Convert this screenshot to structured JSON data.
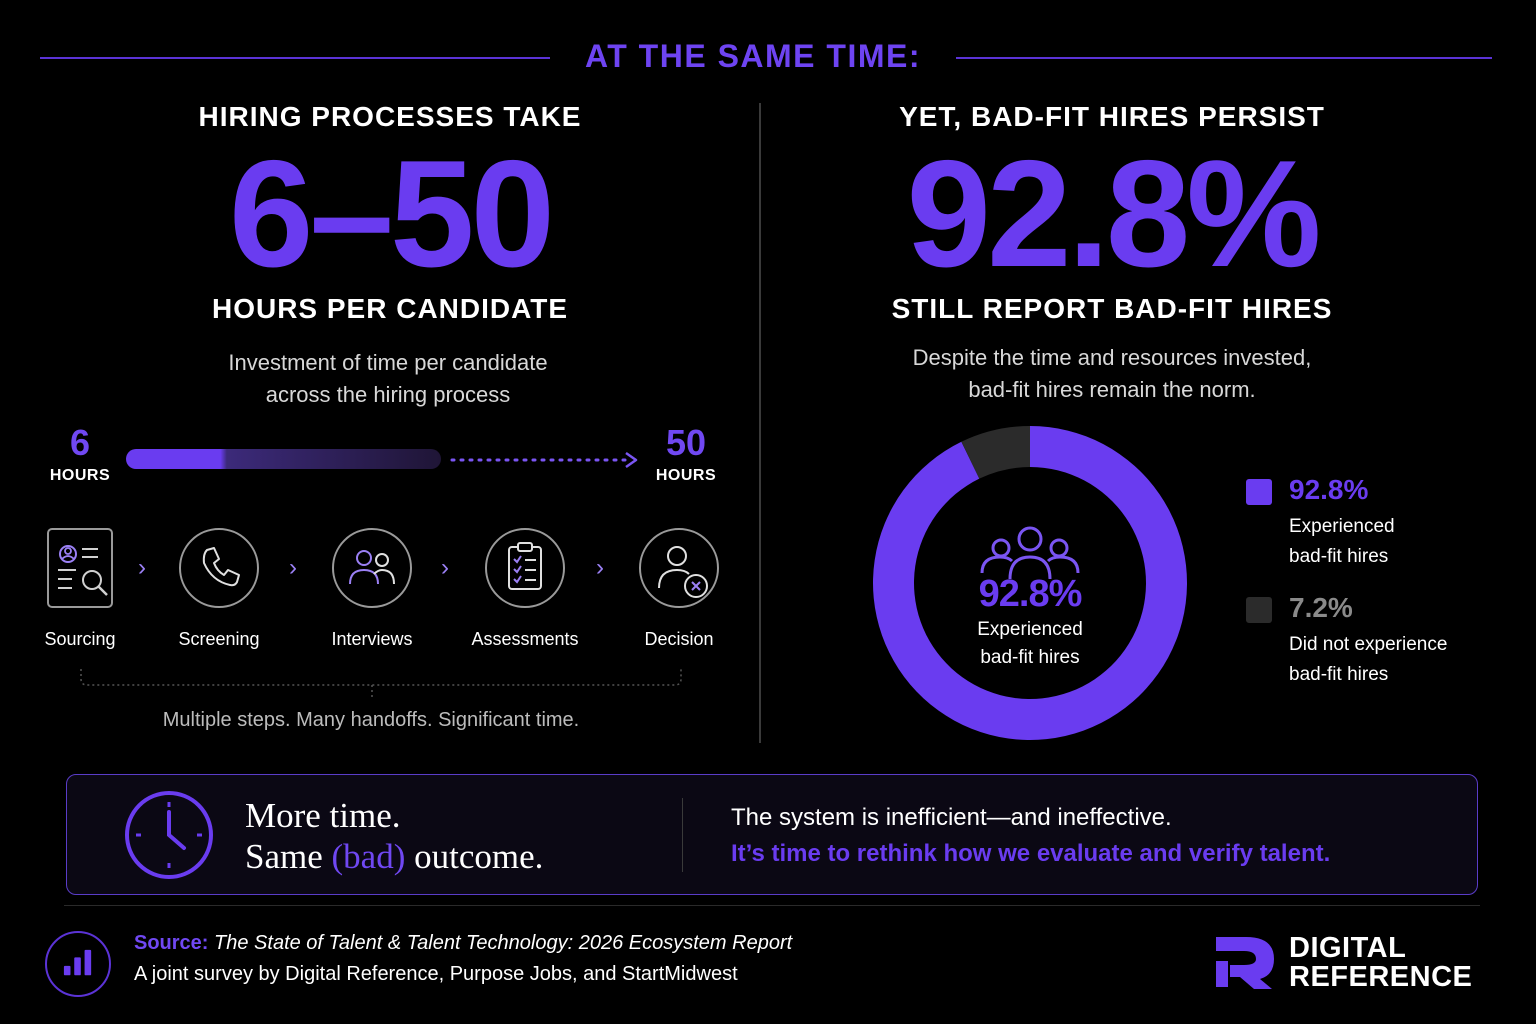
{
  "header": {
    "title": "AT THE SAME TIME:"
  },
  "left": {
    "heading": "HIRING PROCESSES TAKE",
    "big_stat": "6–50",
    "subheading": "HOURS PER CANDIDATE",
    "description_line1": "Investment of time per candidate",
    "description_line2": "across the hiring process",
    "range": {
      "min_value": "6",
      "min_label": "HOURS",
      "max_value": "50",
      "max_label": "HOURS"
    },
    "steps": [
      {
        "label": "Sourcing",
        "icon": "resume-search-icon"
      },
      {
        "label": "Screening",
        "icon": "phone-icon"
      },
      {
        "label": "Interviews",
        "icon": "people-icon"
      },
      {
        "label": "Assessments",
        "icon": "clipboard-checklist-icon"
      },
      {
        "label": "Decision",
        "icon": "user-x-icon"
      }
    ],
    "steps_note": "Multiple steps. Many handoffs. Significant time."
  },
  "right": {
    "heading": "YET, BAD-FIT HIRES PERSIST",
    "big_stat": "92.8%",
    "subheading": "STILL REPORT BAD-FIT HIRES",
    "description_line1": "Despite the time and resources invested,",
    "description_line2": "bad-fit hires remain the norm.",
    "donut_center_pct": "92.8%",
    "donut_center_line1": "Experienced",
    "donut_center_line2": "bad-fit hires",
    "legend": [
      {
        "pct": "92.8%",
        "line1": "Experienced",
        "line2": "bad-fit hires",
        "color": "#6a3cf0"
      },
      {
        "pct": "7.2%",
        "line1": "Did not experience",
        "line2": "bad-fit hires",
        "color": "#2b2b2b"
      }
    ]
  },
  "chart_data": {
    "type": "pie",
    "title": "STILL REPORT BAD-FIT HIRES",
    "categories": [
      "Experienced bad-fit hires",
      "Did not experience bad-fit hires"
    ],
    "values": [
      92.8,
      7.2
    ],
    "colors": [
      "#6a3cf0",
      "#2b2b2b"
    ]
  },
  "callout": {
    "line1": "More time.",
    "line2_a": "Same ",
    "line2_b": "(bad)",
    "line2_c": " outcome.",
    "message1": "The system is inefficient—and ineffective.",
    "message2": "It’s time to rethink how we evaluate and verify talent."
  },
  "footer": {
    "source_label": "Source:",
    "source_title": "The State of Talent & Talent Technology: 2026 Ecosystem Report",
    "source_line2": "A joint survey by Digital Reference, Purpose Jobs, and StartMidwest",
    "logo_line1": "DIGITAL",
    "logo_line2": "REFERENCE"
  },
  "colors": {
    "accent": "#6a3cf0",
    "background": "#000000",
    "muted": "#2b2b2b"
  }
}
